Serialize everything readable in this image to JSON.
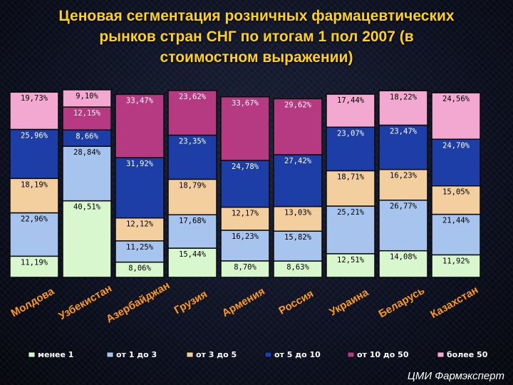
{
  "title_lines": [
    "Ценовая сегментация розничных фармацевтических",
    "рынков стран СНГ по итогам 1 пол 2007 (в",
    "стоимостном выражении)"
  ],
  "source": "ЦМИ Фармэксперт",
  "colors": {
    "менее 1": "#d9f7cf",
    "от 1 до 3": "#a6c4ee",
    "от 3 до 5": "#f3cfa0",
    "от 5 до 10": "#1c3ea6",
    "от 10 до 50": "#b63a82",
    "более 50": "#f2a8d0"
  },
  "chart_data": {
    "type": "bar",
    "stacked": true,
    "percent": true,
    "categories": [
      "Молдова",
      "Узбекистан",
      "Азербайджан",
      "Грузия",
      "Армения",
      "Россия",
      "Украина",
      "Беларусь",
      "Казахстан"
    ],
    "series": [
      {
        "name": "менее 1",
        "values": [
          11.19,
          40.51,
          8.06,
          15.44,
          8.7,
          8.63,
          12.51,
          14.08,
          11.92
        ],
        "labels": [
          "11,19%",
          "40,51%",
          "8,06%",
          "15,44%",
          "8,70%",
          "8,63%",
          "12,51%",
          "14,08%",
          "11,92%"
        ]
      },
      {
        "name": "от 1 до 3",
        "values": [
          22.96,
          28.84,
          11.25,
          17.68,
          16.23,
          15.82,
          25.21,
          26.77,
          21.44
        ],
        "labels": [
          "22,96%",
          "28,84%",
          "11,25%",
          "17,68%",
          "16,23%",
          "15,82%",
          "25,21%",
          "26,77%",
          "21,44%"
        ]
      },
      {
        "name": "от 3 до 5",
        "values": [
          18.19,
          0,
          12.12,
          18.79,
          12.17,
          13.03,
          18.71,
          16.23,
          15.05
        ],
        "labels": [
          "18,19%",
          "",
          "12,12%",
          "18,79%",
          "12,17%",
          "13,03%",
          "18,71%",
          "16,23%",
          "15,05%"
        ]
      },
      {
        "name": "от 5 до 10",
        "values": [
          25.96,
          8.66,
          31.92,
          23.35,
          24.78,
          27.42,
          23.07,
          23.47,
          24.7
        ],
        "labels": [
          "25,96%",
          "8,66%",
          "31,92%",
          "23,35%",
          "24,78%",
          "27,42%",
          "23,07%",
          "23,47%",
          "24,70%"
        ]
      },
      {
        "name": "от 10 до 50",
        "values": [
          0,
          12.15,
          33.47,
          23.62,
          33.67,
          29.62,
          0,
          0,
          0
        ],
        "labels": [
          "",
          "12,15%",
          "33,47%",
          "23,62%",
          "33,67%",
          "29,62%",
          "",
          "",
          ""
        ]
      },
      {
        "name": "более 50",
        "values": [
          19.73,
          9.1,
          0,
          0,
          0,
          0,
          17.44,
          18.22,
          24.56
        ],
        "labels": [
          "19,73%",
          "9,10%",
          "",
          "",
          "",
          "",
          "17,44%",
          "18,22%",
          "24,56%"
        ]
      }
    ],
    "ylim": [
      0,
      100
    ],
    "grid": false,
    "legend_placement": "bottom"
  }
}
